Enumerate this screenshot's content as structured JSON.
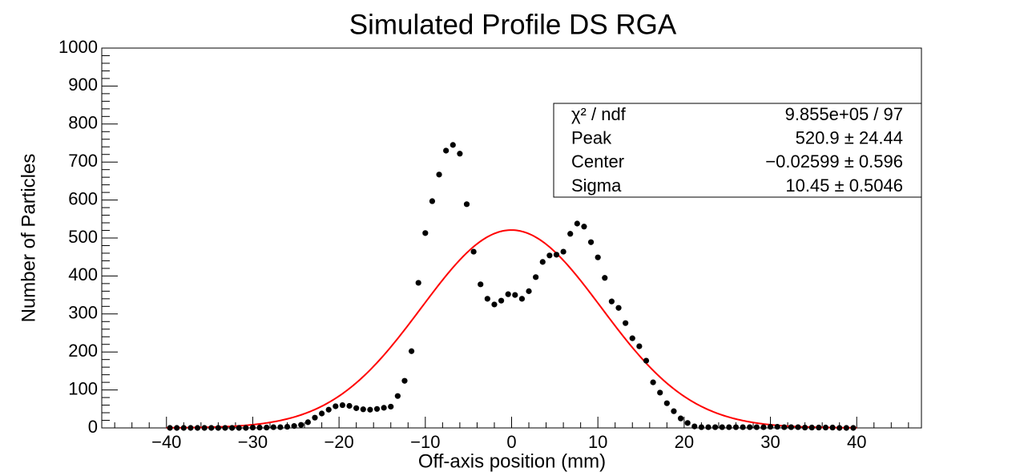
{
  "chart_data": {
    "type": "scatter",
    "title": "Simulated Profile DS RGA",
    "x_label": "Off-axis position (mm)",
    "y_label": "Number of Particles",
    "color": "#000000",
    "x": [
      -39.6,
      -38.8,
      -38,
      -37.2,
      -36.4,
      -35.6,
      -34.8,
      -34,
      -33.2,
      -32.4,
      -31.6,
      -30.8,
      -30,
      -29.2,
      -28.4,
      -27.6,
      -26.8,
      -26,
      -25.2,
      -24.4,
      -23.6,
      -22.8,
      -22,
      -21.2,
      -20.4,
      -19.6,
      -18.8,
      -18,
      -17.2,
      -16.4,
      -15.6,
      -14.8,
      -14,
      -13.2,
      -12.4,
      -11.6,
      -10.8,
      -10,
      -9.2,
      -8.4,
      -7.6,
      -6.8,
      -6,
      -5.2,
      -4.4,
      -3.6,
      -2.8,
      -2,
      -1.2,
      -0.4,
      0.4,
      1.2,
      2,
      2.8,
      3.6,
      4.4,
      5.2,
      6,
      6.8,
      7.6,
      8.4,
      9.2,
      10,
      10.8,
      11.6,
      12.4,
      13.2,
      14,
      14.8,
      15.6,
      16.4,
      17.2,
      18,
      18.8,
      19.6,
      20.4,
      21.2,
      22,
      22.8,
      23.6,
      24.4,
      25.2,
      26,
      26.8,
      27.6,
      28.4,
      29.2,
      30,
      30.8,
      31.6,
      32.4,
      33.2,
      34,
      34.8,
      35.6,
      36.4,
      37.2,
      38,
      38.8,
      39.6
    ],
    "values": [
      0,
      0,
      0,
      0,
      0,
      0,
      0,
      0,
      0,
      0,
      0,
      0,
      1,
      1,
      1,
      2,
      2,
      3,
      5,
      8,
      15,
      27,
      38,
      48,
      57,
      60,
      58,
      52,
      49,
      48,
      50,
      53,
      56,
      84,
      124,
      202,
      382,
      513,
      597,
      667,
      730,
      745,
      722,
      589,
      464,
      378,
      340,
      325,
      335,
      352,
      350,
      340,
      360,
      397,
      437,
      454,
      456,
      464,
      511,
      538,
      530,
      489,
      449,
      395,
      333,
      316,
      276,
      236,
      215,
      177,
      120,
      93,
      65,
      44,
      25,
      13,
      4,
      2,
      2,
      2,
      2,
      2,
      2,
      2,
      2,
      2,
      2,
      3,
      3,
      2,
      2,
      2,
      1,
      1,
      1,
      1,
      1,
      0,
      0,
      0
    ],
    "xlim": [
      -47.5,
      47.5
    ],
    "ylim": [
      0,
      1000
    ],
    "xticks": [
      {
        "value": -40,
        "label": "−40"
      },
      {
        "value": -30,
        "label": "−30"
      },
      {
        "value": -20,
        "label": "−20"
      },
      {
        "value": -10,
        "label": "−10"
      },
      0,
      10,
      20,
      30,
      40
    ],
    "yticks": [
      0,
      100,
      200,
      300,
      400,
      500,
      600,
      700,
      800,
      900,
      1000
    ],
    "fit": {
      "peak": 520.9,
      "center": -0.02599,
      "sigma": 10.45,
      "range": [
        -40,
        40
      ],
      "color": "#ff0000"
    },
    "stats": [
      {
        "label": "χ² / ndf",
        "value": "9.855e+05 / 97"
      },
      {
        "label": "Peak",
        "value": "520.9 ± 24.44"
      },
      {
        "label": "Center",
        "value": "−0.02599 ± 0.596"
      },
      {
        "label": "Sigma",
        "value": "10.45 ± 0.5046"
      }
    ]
  }
}
